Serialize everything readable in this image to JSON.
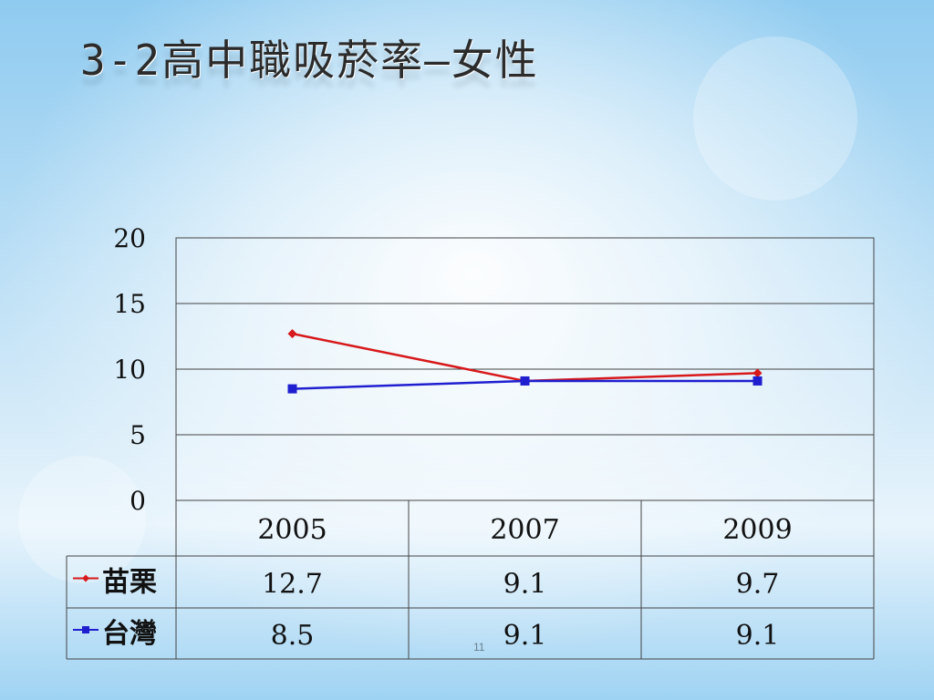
{
  "slide": {
    "title": "3-2高中職吸菸率—女性",
    "page_number": "11"
  },
  "chart_data": {
    "type": "line",
    "categories": [
      "2005",
      "2007",
      "2009"
    ],
    "series": [
      {
        "name": "苗栗",
        "values": [
          12.7,
          9.1,
          9.7
        ],
        "value_labels": [
          "12.7",
          "9.1",
          "9.7"
        ],
        "color": "#d7191c",
        "marker": "diamond"
      },
      {
        "name": "台灣",
        "values": [
          8.5,
          9.1,
          9.1
        ],
        "value_labels": [
          "8.5",
          "9.1",
          "9.1"
        ],
        "color": "#1f1fd0",
        "marker": "square"
      }
    ],
    "ylim": [
      0,
      20
    ],
    "yticks": [
      "0",
      "5",
      "10",
      "15",
      "20"
    ],
    "grid": true,
    "data_table": true
  }
}
